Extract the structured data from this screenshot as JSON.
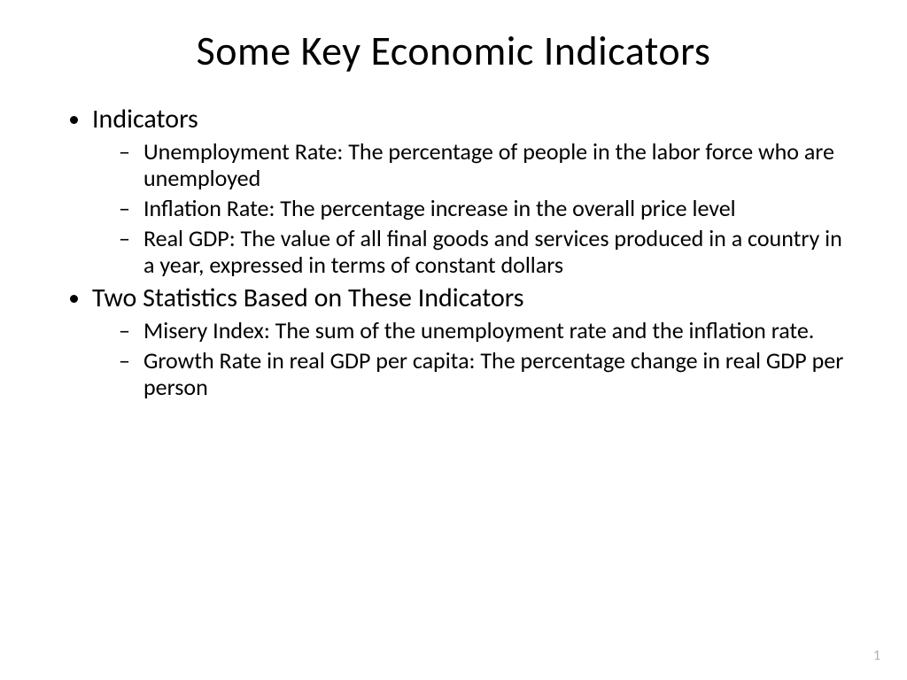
{
  "title": "Some Key Economic Indicators",
  "sections": [
    {
      "heading": "Indicators",
      "items": [
        "Unemployment Rate:  The percentage of people in the labor force who are unemployed",
        "Inflation Rate:  The percentage increase in the overall price level",
        "Real GDP:  The value of all final goods and services produced in a country in a year, expressed in terms of constant dollars"
      ]
    },
    {
      "heading": "Two Statistics Based on These Indicators",
      "items": [
        "Misery Index:  The sum of the unemployment rate and the inflation rate.",
        "Growth Rate in real GDP per capita:  The percentage change in real GDP per person"
      ]
    }
  ],
  "page_number": "1",
  "colors": {
    "background": "#ffffff",
    "text": "#000000",
    "page_number": "#b0b0b0"
  },
  "typography": {
    "title_fontsize": 46,
    "level1_fontsize": 30,
    "level2_fontsize": 26,
    "font_family": "Calibri"
  }
}
